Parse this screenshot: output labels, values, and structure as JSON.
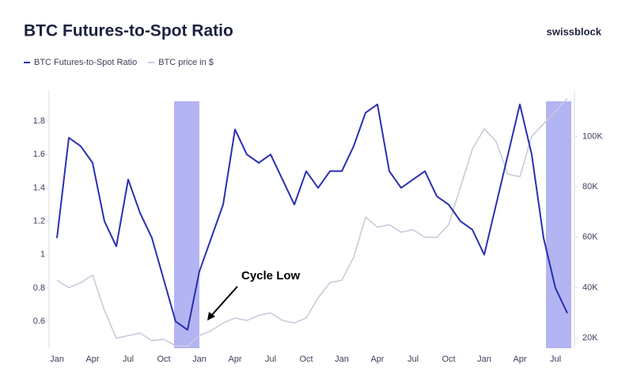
{
  "chart_data": {
    "type": "line",
    "title": "BTC Futures-to-Spot Ratio",
    "brand": "swissblock",
    "annotation": "Cycle Low",
    "categories": [
      "Jan",
      null,
      null,
      "Apr",
      null,
      null,
      "Jul",
      null,
      null,
      "Oct",
      null,
      null,
      "Jan",
      null,
      null,
      "Apr",
      null,
      null,
      "Jul",
      null,
      null,
      "Oct",
      null,
      null,
      "Jan",
      null,
      null,
      "Apr",
      null,
      null,
      "Jul",
      null,
      null,
      "Oct",
      null,
      null,
      "Jan",
      null,
      null,
      "Apr",
      null,
      null,
      "Jul",
      null
    ],
    "series": [
      {
        "name": "BTC Futures-to-Spot Ratio",
        "color": "#2b2fb0",
        "axis": "y",
        "values": [
          1.1,
          1.7,
          1.65,
          1.55,
          1.2,
          1.05,
          1.45,
          1.25,
          1.1,
          0.85,
          0.6,
          0.55,
          0.9,
          1.1,
          1.3,
          1.75,
          1.6,
          1.55,
          1.6,
          1.45,
          1.3,
          1.5,
          1.4,
          1.5,
          1.5,
          1.65,
          1.85,
          1.9,
          1.5,
          1.4,
          1.45,
          1.5,
          1.35,
          1.3,
          1.2,
          1.15,
          1.0,
          1.3,
          1.6,
          1.9,
          1.6,
          1.1,
          0.8,
          0.65
        ]
      },
      {
        "name": "BTC price in $",
        "color": "#c9cbdc",
        "axis": "y2",
        "values": [
          43000,
          40000,
          42000,
          45000,
          31000,
          20000,
          21000,
          22000,
          19000,
          19500,
          17000,
          16800,
          21000,
          23000,
          26000,
          28000,
          27000,
          29000,
          30000,
          27000,
          26000,
          28000,
          36000,
          42000,
          43000,
          52000,
          68000,
          64000,
          65000,
          62000,
          63000,
          60000,
          60000,
          65000,
          80000,
          95000,
          103000,
          98000,
          85000,
          84000,
          100000,
          105000,
          110000,
          115000
        ]
      }
    ],
    "ylim": [
      0.44,
      1.98
    ],
    "yticks": [
      0.6,
      0.8,
      1,
      1.2,
      1.4,
      1.6,
      1.8
    ],
    "y2lim": [
      16000,
      118000
    ],
    "y2ticks": [
      {
        "value": 20000,
        "label": "20K"
      },
      {
        "value": 40000,
        "label": "40K"
      },
      {
        "value": 60000,
        "label": "60K"
      },
      {
        "value": 80000,
        "label": "80K"
      },
      {
        "value": 100000,
        "label": "100K"
      }
    ],
    "grid": false
  }
}
